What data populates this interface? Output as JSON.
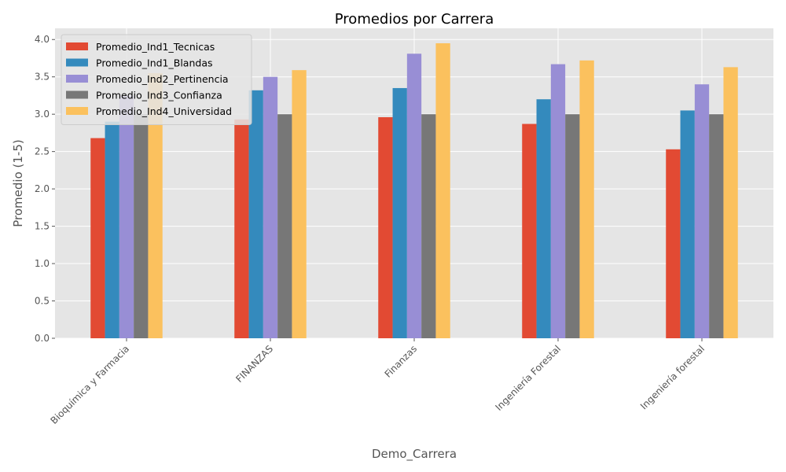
{
  "chart_data": {
    "type": "bar",
    "title": "Promedios por Carrera",
    "xlabel": "Demo_Carrera",
    "ylabel": "Promedio (1-5)",
    "ylim": [
      0,
      4.15
    ],
    "yticks": [
      0.0,
      0.5,
      1.0,
      1.5,
      2.0,
      2.5,
      3.0,
      3.5,
      4.0
    ],
    "ytick_labels": [
      "0.0",
      "0.5",
      "1.0",
      "1.5",
      "2.0",
      "2.5",
      "3.0",
      "3.5",
      "4.0"
    ],
    "grid": true,
    "legend_position": "top-left",
    "categories": [
      "Bioquímica y Farmacia",
      "FINANZAS",
      "Finanzas",
      "Ingeniería Forestal",
      "Ingeniería forestal"
    ],
    "series": [
      {
        "name": "Promedio_Ind1_Tecnicas",
        "color": "#E24A33",
        "values": [
          2.68,
          2.93,
          2.96,
          2.87,
          2.53
        ]
      },
      {
        "name": "Promedio_Ind1_Blandas",
        "color": "#348ABD",
        "values": [
          2.9,
          3.32,
          3.35,
          3.2,
          3.05
        ]
      },
      {
        "name": "Promedio_Ind2_Pertinencia",
        "color": "#988ED5",
        "values": [
          3.25,
          3.5,
          3.81,
          3.67,
          3.4
        ]
      },
      {
        "name": "Promedio_Ind3_Confianza",
        "color": "#777777",
        "values": [
          3.0,
          3.0,
          3.0,
          3.0,
          3.0
        ]
      },
      {
        "name": "Promedio_Ind4_Universidad",
        "color": "#FBC15E",
        "values": [
          3.55,
          3.59,
          3.95,
          3.72,
          3.63
        ]
      }
    ],
    "colors": {
      "plot_background": "#E5E5E5",
      "grid": "#FFFFFF",
      "tick_text": "#555555",
      "legend_background": "#E5E5E5",
      "legend_border": "#CCCCCC"
    }
  }
}
